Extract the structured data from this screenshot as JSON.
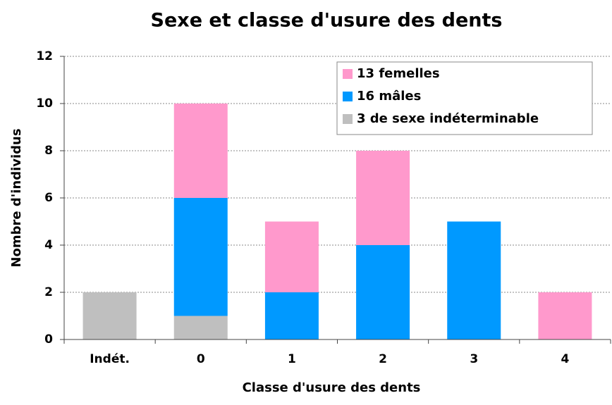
{
  "chart_data": {
    "type": "stacked_bar",
    "title": "Sexe et classe d'usure des dents",
    "x_label": "Classe d'usure des dents",
    "y_label": "Nombre d'individus",
    "categories": [
      "Indét.",
      "0",
      "1",
      "2",
      "3",
      "4"
    ],
    "series": [
      {
        "name": "3 de sexe indéterminable",
        "color": "#bfbfbf",
        "values": [
          2,
          1,
          0,
          0,
          0,
          0
        ]
      },
      {
        "name": "16 mâles",
        "color": "#0099ff",
        "values": [
          0,
          5,
          2,
          4,
          5,
          0
        ]
      },
      {
        "name": "13 femelles",
        "color": "#ff99cc",
        "values": [
          0,
          4,
          3,
          4,
          0,
          2
        ]
      }
    ],
    "ylim": [
      0,
      12
    ],
    "yticks": [
      0,
      2,
      4,
      6,
      8,
      10,
      12
    ],
    "grid": true,
    "legend": "top-right"
  }
}
